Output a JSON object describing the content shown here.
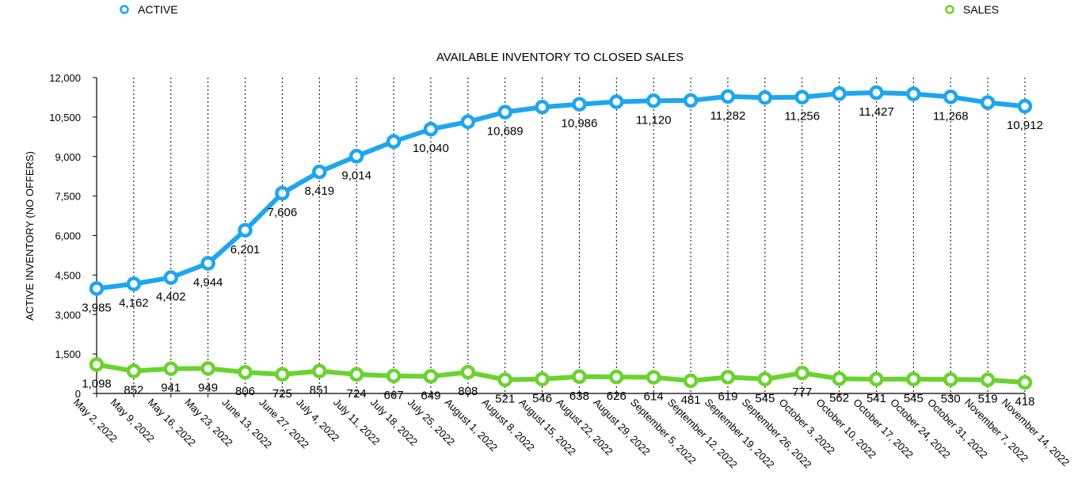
{
  "chart_data": {
    "type": "line",
    "title": "AVAILABLE INVENTORY TO CLOSED SALES",
    "xlabel": "",
    "ylabel": "ACTIVE INVENTORY (NO OFFERS)",
    "ylim": [
      0,
      12000
    ],
    "yticks": [
      "0",
      "1,500",
      "3,000",
      "4,500",
      "6,000",
      "7,500",
      "9,000",
      "10,500",
      "12,000"
    ],
    "ytick_values": [
      0,
      1500,
      3000,
      4500,
      6000,
      7500,
      9000,
      10500,
      12000
    ],
    "grid": "vertical dotted",
    "legend_placement": "top",
    "categories": [
      "May 2, 2022",
      "May 9, 2022",
      "May 16, 2022",
      "May 23, 2022",
      "June 13, 2022",
      "June 27, 2022",
      "July 4, 2022",
      "July 11, 2022",
      "July 18, 2022",
      "July 25, 2022",
      "August 1, 2022",
      "August 8, 2022",
      "August 15, 2022",
      "August 22, 2022",
      "August 29, 2022",
      "September 5, 2022",
      "September 12, 2022",
      "September 19, 2022",
      "September 26, 2022",
      "October 3, 2022",
      "October 10, 2022",
      "October 17, 2022",
      "October 24, 2022",
      "October 31, 2022",
      "November 7, 2022",
      "November 14, 2022"
    ],
    "series": [
      {
        "name": "ACTIVE",
        "color": "#1ea6ee",
        "values": [
          3985,
          4162,
          4402,
          4944,
          6201,
          7606,
          8419,
          9014,
          9570,
          10040,
          10320,
          10689,
          10880,
          10986,
          11080,
          11120,
          11130,
          11282,
          11240,
          11256,
          11390,
          11427,
          11380,
          11268,
          11050,
          10912
        ],
        "data_labels": [
          "3,985",
          "4,162",
          "4,402",
          "4,944",
          "6,201",
          "7,606",
          "8,419",
          "9,014",
          "",
          "10,040",
          "",
          "10,689",
          "",
          "10,986",
          "",
          "11,120",
          "",
          "11,282",
          "",
          "11,256",
          "",
          "11,427",
          "",
          "11,268",
          "",
          "10,912"
        ]
      },
      {
        "name": "SALES",
        "color": "#6ad330",
        "values": [
          1098,
          852,
          941,
          949,
          806,
          725,
          851,
          724,
          667,
          649,
          808,
          521,
          546,
          638,
          626,
          614,
          481,
          619,
          545,
          777,
          562,
          541,
          545,
          530,
          519,
          418
        ],
        "data_labels": [
          "1,098",
          "852",
          "941",
          "949",
          "806",
          "725",
          "851",
          "724",
          "667",
          "649",
          "808",
          "521",
          "546",
          "638",
          "626",
          "614",
          "481",
          "619",
          "545",
          "777",
          "562",
          "541",
          "545",
          "530",
          "519",
          "418"
        ]
      }
    ]
  }
}
